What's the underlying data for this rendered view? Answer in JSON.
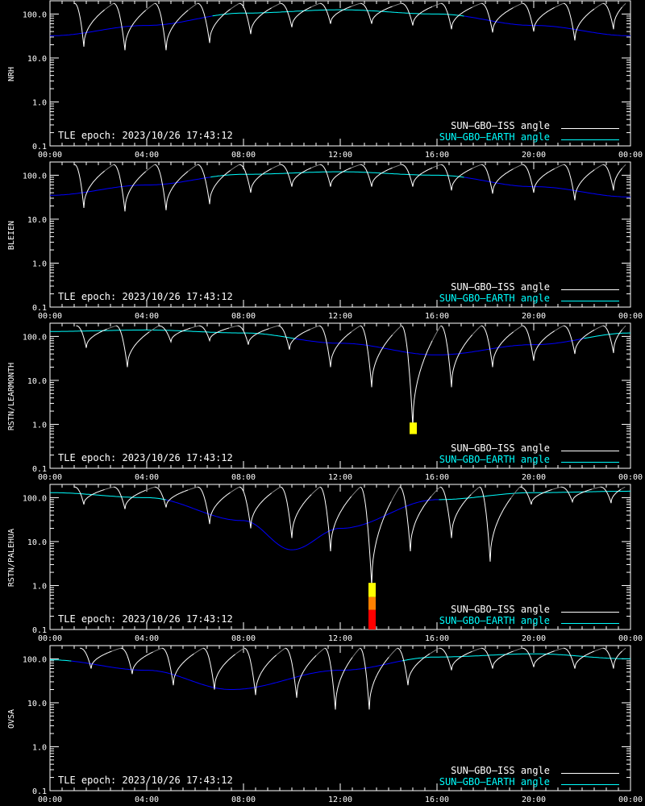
{
  "chart_data": {
    "type": "line",
    "x_tick_labels": [
      "00:00",
      "04:00",
      "08:00",
      "12:00",
      "16:00",
      "20:00",
      "00:00"
    ],
    "x_range_hours": [
      0,
      24
    ],
    "ylim": [
      0.1,
      200
    ],
    "y_scale": "log",
    "y_tick_labels": [
      "100.0",
      "10.0",
      "1.0",
      "0.1"
    ],
    "y_tick_values": [
      100,
      10,
      1,
      0.1
    ],
    "epoch_label": "TLE epoch: 2023/10/26 17:43:12",
    "legend_placement": "bottom-right",
    "legend": [
      {
        "name": "SUN–GBO–ISS angle",
        "color": "#ffffff"
      },
      {
        "name": "SUN–GBO–EARTH angle",
        "color": "#00ffff"
      }
    ],
    "colors": {
      "background": "#000000",
      "axes": "#ffffff",
      "iss_visible": "#ffffff",
      "iss_hidden": "#808080",
      "earth_day": "#00ffff",
      "earth_night": "#0000ff",
      "marker_low": "#ff0000",
      "marker_mid": "#ff8000",
      "marker_high": "#ffff00"
    },
    "panels": [
      {
        "station": "NRH",
        "earth_angle": {
          "hours": [
            0,
            4,
            8,
            12,
            16,
            20,
            24
          ],
          "values": [
            32,
            55,
            105,
            125,
            100,
            55,
            32
          ]
        },
        "iss_minima": {
          "hours": [
            1.4,
            3.1,
            4.8,
            6.6,
            8.3,
            10.0,
            11.6,
            13.3,
            15.0,
            16.6,
            18.3,
            20.0,
            21.7,
            23.3
          ],
          "values": [
            18,
            15,
            15,
            22,
            35,
            50,
            60,
            60,
            55,
            45,
            38,
            40,
            25,
            45
          ]
        },
        "markers": []
      },
      {
        "station": "BLEIEN",
        "earth_angle": {
          "hours": [
            0,
            4,
            8,
            12,
            16,
            20,
            24
          ],
          "values": [
            35,
            60,
            105,
            120,
            100,
            55,
            32
          ]
        },
        "iss_minima": {
          "hours": [
            1.4,
            3.1,
            4.8,
            6.6,
            8.3,
            10.0,
            11.6,
            13.3,
            15.0,
            16.6,
            18.3,
            20.0,
            21.7,
            23.3
          ],
          "values": [
            18,
            15,
            16,
            22,
            40,
            55,
            55,
            55,
            55,
            45,
            38,
            40,
            27,
            45
          ]
        },
        "markers": []
      },
      {
        "station": "RSTN/LEARMONTH",
        "earth_angle": {
          "hours": [
            0,
            4,
            8,
            12,
            16,
            20,
            24
          ],
          "values": [
            130,
            140,
            120,
            70,
            38,
            65,
            120
          ]
        },
        "iss_minima": {
          "hours": [
            1.5,
            3.2,
            5.0,
            6.6,
            8.2,
            9.9,
            11.6,
            13.3,
            15.0,
            16.6,
            18.3,
            20.0,
            21.7,
            23.3
          ],
          "values": [
            55,
            20,
            75,
            80,
            65,
            50,
            20,
            7,
            0.9,
            7,
            20,
            28,
            40,
            42
          ]
        },
        "markers": [
          {
            "hour": 15.0,
            "levels": [
              {
                "low": 0.6,
                "high": 1.1,
                "color": "#ffff00"
              }
            ]
          }
        ]
      },
      {
        "station": "RSTN/PALEHUA",
        "earth_angle": {
          "hours": [
            0,
            4,
            8,
            10,
            12,
            16,
            20,
            24
          ],
          "values": [
            130,
            100,
            30,
            6.5,
            20,
            90,
            130,
            140
          ]
        },
        "iss_minima": {
          "hours": [
            1.4,
            3.1,
            4.8,
            6.6,
            8.3,
            10.0,
            11.6,
            13.3,
            14.9,
            16.6,
            18.2,
            19.9,
            21.6,
            23.2
          ],
          "values": [
            70,
            55,
            60,
            25,
            20,
            12,
            6,
            1,
            6,
            12,
            3.5,
            70,
            80,
            75
          ]
        },
        "markers": [
          {
            "hour": 13.3,
            "levels": [
              {
                "low": 0.1,
                "high": 0.28,
                "color": "#ff0000"
              },
              {
                "low": 0.28,
                "high": 0.55,
                "color": "#ff8000"
              },
              {
                "low": 0.55,
                "high": 1.15,
                "color": "#ffff00"
              }
            ]
          }
        ]
      },
      {
        "station": "OVSA",
        "earth_angle": {
          "hours": [
            0,
            4,
            7.5,
            12,
            16,
            20,
            24
          ],
          "values": [
            95,
            55,
            20,
            55,
            110,
            130,
            100
          ]
        },
        "iss_minima": {
          "hours": [
            1.7,
            3.4,
            5.1,
            6.8,
            8.5,
            10.2,
            11.8,
            13.2,
            14.8,
            16.6,
            18.3,
            20.0,
            21.7,
            23.3
          ],
          "values": [
            60,
            45,
            25,
            20,
            15,
            13,
            7,
            7,
            25,
            55,
            60,
            65,
            60,
            60
          ]
        },
        "markers": []
      }
    ]
  }
}
